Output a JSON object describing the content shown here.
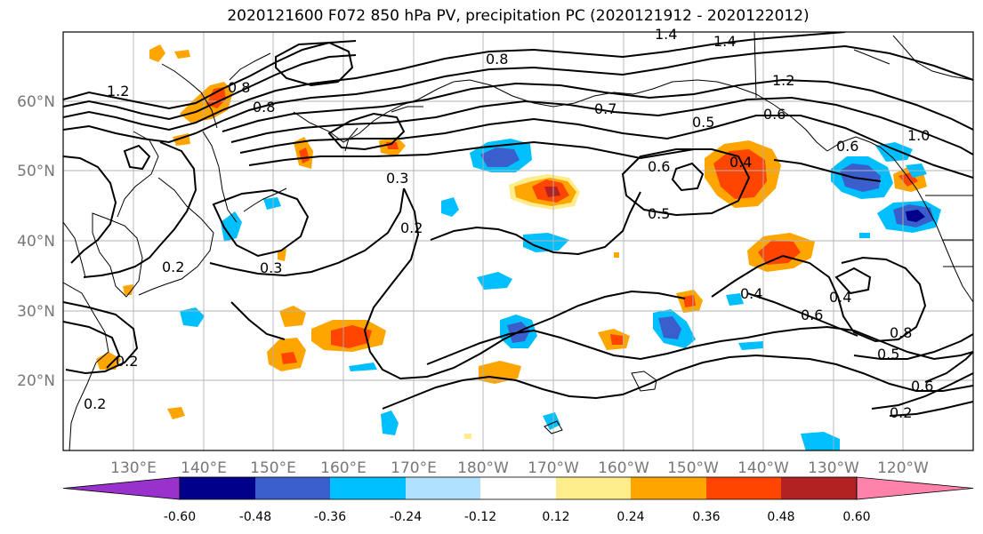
{
  "title": "2020121600 F072 850 hPa PV, precipitation PC (2020121912 - 2020122012)",
  "lat_ticks": [
    "60°N",
    "50°N",
    "40°N",
    "30°N",
    "20°N"
  ],
  "lon_ticks": [
    "130°E",
    "140°E",
    "150°E",
    "160°E",
    "170°E",
    "180°W",
    "170°W",
    "160°W",
    "150°W",
    "140°W",
    "130°W",
    "120°W"
  ],
  "colorbar": {
    "colors": [
      "#9932cc",
      "#00008b",
      "#3a5fcd",
      "#00bfff",
      "#b0e2ff",
      "#ffffff",
      "#ffec8b",
      "#ffa500",
      "#ff4500",
      "#b22222",
      "#ff82ab"
    ],
    "labels": [
      "-0.60",
      "-0.48",
      "-0.36",
      "-0.24",
      "-0.12",
      "0.12",
      "0.24",
      "0.36",
      "0.48",
      "0.60"
    ]
  },
  "pv_labels": [
    "1.4",
    "1.4",
    "1.2",
    "1.2",
    "0.8",
    "0.8",
    "0.8",
    "0.7",
    "0.6",
    "0.6",
    "0.5",
    "0.4",
    "0.5",
    "0.3",
    "0.3",
    "0.2",
    "0.2",
    "0.2",
    "0.2",
    "0.4",
    "0.4",
    "0.6",
    "0.8",
    "0.5",
    "0.6",
    "0.2",
    "0.6",
    "1.0"
  ]
}
